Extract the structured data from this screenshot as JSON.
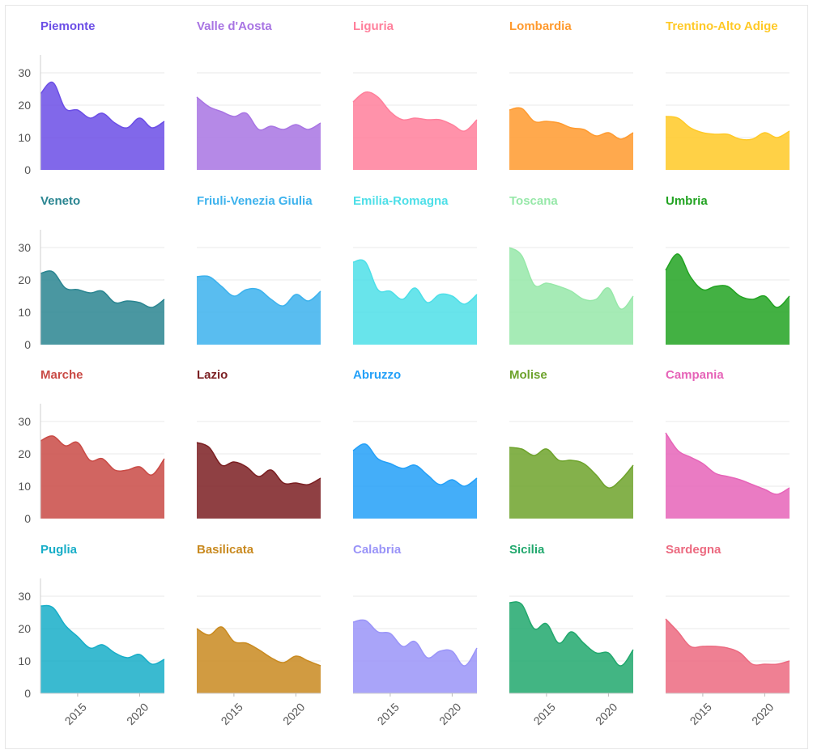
{
  "chart_data": {
    "type": "area",
    "layout": "small-multiples",
    "x_ticks": [
      2015,
      2020
    ],
    "y_ticks": [
      0,
      10,
      20,
      30
    ],
    "ylim": [
      0,
      35
    ],
    "xlim": [
      2012,
      2022
    ],
    "panels": [
      {
        "title": "Piemonte",
        "color": "#6b4ee6",
        "x": [
          2012,
          2013,
          2014,
          2015,
          2016,
          2017,
          2018,
          2019,
          2020,
          2021,
          2022
        ],
        "values": [
          23.5,
          27,
          19,
          18.5,
          16,
          17.5,
          14.5,
          13,
          16,
          13,
          15
        ]
      },
      {
        "title": "Valle d'Aosta",
        "color": "#a874e3",
        "x": [
          2012,
          2013,
          2014,
          2015,
          2016,
          2017,
          2018,
          2019,
          2020,
          2021,
          2022
        ],
        "values": [
          22.5,
          19.5,
          18,
          16.5,
          17.5,
          12.5,
          13.5,
          12.5,
          14,
          12.5,
          14.5
        ]
      },
      {
        "title": "Liguria",
        "color": "#ff7f9b",
        "x": [
          2012,
          2013,
          2014,
          2015,
          2016,
          2017,
          2018,
          2019,
          2020,
          2021,
          2022
        ],
        "values": [
          21,
          24,
          22.5,
          18,
          15.5,
          16,
          15.5,
          15.5,
          14,
          12,
          15.5
        ]
      },
      {
        "title": "Lombardia",
        "color": "#ff9a2e",
        "x": [
          2012,
          2013,
          2014,
          2015,
          2016,
          2017,
          2018,
          2019,
          2020,
          2021,
          2022
        ],
        "values": [
          18.5,
          19,
          15,
          15,
          14.5,
          13,
          12.5,
          10.5,
          11.5,
          9.5,
          11.5
        ]
      },
      {
        "title": "Trentino-Alto Adige",
        "color": "#ffc926",
        "x": [
          2012,
          2013,
          2014,
          2015,
          2016,
          2017,
          2018,
          2019,
          2020,
          2021,
          2022
        ],
        "values": [
          16.5,
          16,
          13,
          11.5,
          11,
          11,
          9.5,
          9.5,
          11.5,
          10,
          12
        ]
      },
      {
        "title": "Veneto",
        "color": "#2a8591",
        "x": [
          2012,
          2013,
          2014,
          2015,
          2016,
          2017,
          2018,
          2019,
          2020,
          2021,
          2022
        ],
        "values": [
          22,
          22.5,
          17.5,
          17,
          16,
          16.5,
          13,
          13.5,
          13,
          11.5,
          14
        ]
      },
      {
        "title": "Friuli-Venezia Giulia",
        "color": "#3cb2ed",
        "x": [
          2012,
          2013,
          2014,
          2015,
          2016,
          2017,
          2018,
          2019,
          2020,
          2021,
          2022
        ],
        "values": [
          21,
          21,
          18,
          15,
          17,
          17,
          14,
          12,
          15.5,
          13.5,
          16.5
        ]
      },
      {
        "title": "Emilia-Romagna",
        "color": "#4ddfe8",
        "x": [
          2012,
          2013,
          2014,
          2015,
          2016,
          2017,
          2018,
          2019,
          2020,
          2021,
          2022
        ],
        "values": [
          25.5,
          25.5,
          17,
          16.5,
          14,
          17.5,
          13,
          15.5,
          15,
          12.5,
          15.5
        ]
      },
      {
        "title": "Toscana",
        "color": "#97e8a9",
        "x": [
          2012,
          2013,
          2014,
          2015,
          2016,
          2017,
          2018,
          2019,
          2020,
          2021,
          2022
        ],
        "values": [
          30,
          27.5,
          18.5,
          19,
          18,
          16.5,
          14,
          14,
          17.5,
          11,
          15
        ]
      },
      {
        "title": "Umbria",
        "color": "#22a322",
        "x": [
          2012,
          2013,
          2014,
          2015,
          2016,
          2017,
          2018,
          2019,
          2020,
          2021,
          2022
        ],
        "values": [
          23,
          28,
          21,
          17,
          18,
          18,
          15,
          14,
          15,
          11.5,
          15
        ]
      },
      {
        "title": "Marche",
        "color": "#c94a45",
        "x": [
          2012,
          2013,
          2014,
          2015,
          2016,
          2017,
          2018,
          2019,
          2020,
          2021,
          2022
        ],
        "values": [
          24,
          25.5,
          22.5,
          23.5,
          18,
          18.5,
          15,
          15,
          16,
          13.5,
          18.5
        ]
      },
      {
        "title": "Lazio",
        "color": "#7b1f22",
        "x": [
          2012,
          2013,
          2014,
          2015,
          2016,
          2017,
          2018,
          2019,
          2020,
          2021,
          2022
        ],
        "values": [
          23.5,
          22,
          16.5,
          17.5,
          16,
          13,
          15,
          11,
          11,
          10.5,
          12.5
        ]
      },
      {
        "title": "Abruzzo",
        "color": "#23a0f8",
        "x": [
          2012,
          2013,
          2014,
          2015,
          2016,
          2017,
          2018,
          2019,
          2020,
          2021,
          2022
        ],
        "values": [
          21,
          23,
          18.5,
          17,
          15.5,
          16.5,
          13.5,
          10.5,
          12,
          10,
          12.5
        ]
      },
      {
        "title": "Molise",
        "color": "#6ea32c",
        "x": [
          2012,
          2013,
          2014,
          2015,
          2016,
          2017,
          2018,
          2019,
          2020,
          2021,
          2022
        ],
        "values": [
          22,
          21.5,
          19.5,
          21.5,
          18,
          18,
          17,
          13.5,
          9.5,
          12,
          16.5
        ]
      },
      {
        "title": "Campania",
        "color": "#e664b8",
        "x": [
          2012,
          2013,
          2014,
          2015,
          2016,
          2017,
          2018,
          2019,
          2020,
          2021,
          2022
        ],
        "values": [
          26.5,
          21,
          19,
          17,
          14,
          13,
          12,
          10.5,
          9,
          7.5,
          9.5
        ]
      },
      {
        "title": "Puglia",
        "color": "#18aec8",
        "x": [
          2012,
          2013,
          2014,
          2015,
          2016,
          2017,
          2018,
          2019,
          2020,
          2021,
          2022
        ],
        "values": [
          27,
          26.5,
          21,
          17.5,
          14,
          15,
          12.5,
          11,
          12,
          9,
          10.5
        ]
      },
      {
        "title": "Basilicata",
        "color": "#c98a20",
        "x": [
          2012,
          2013,
          2014,
          2015,
          2016,
          2017,
          2018,
          2019,
          2020,
          2021,
          2022
        ],
        "values": [
          20,
          18,
          20.5,
          16,
          15.5,
          13.5,
          11,
          9.5,
          11.5,
          10,
          8.5
        ]
      },
      {
        "title": "Calabria",
        "color": "#9a94f8",
        "x": [
          2012,
          2013,
          2014,
          2015,
          2016,
          2017,
          2018,
          2019,
          2020,
          2021,
          2022
        ],
        "values": [
          22,
          22.5,
          19,
          18.5,
          14.5,
          16,
          11,
          13,
          13,
          8.5,
          14
        ]
      },
      {
        "title": "Sicilia",
        "color": "#21a86d",
        "x": [
          2012,
          2013,
          2014,
          2015,
          2016,
          2017,
          2018,
          2019,
          2020,
          2021,
          2022
        ],
        "values": [
          28,
          27.5,
          20,
          21.5,
          15.5,
          19,
          15.5,
          12.5,
          12.5,
          8.5,
          13.5
        ]
      },
      {
        "title": "Sardegna",
        "color": "#ec6a80",
        "x": [
          2012,
          2013,
          2014,
          2015,
          2016,
          2017,
          2018,
          2019,
          2020,
          2021,
          2022
        ],
        "values": [
          23,
          19,
          14.5,
          14.5,
          14.5,
          14,
          12.5,
          9,
          9,
          9,
          10
        ]
      }
    ]
  }
}
